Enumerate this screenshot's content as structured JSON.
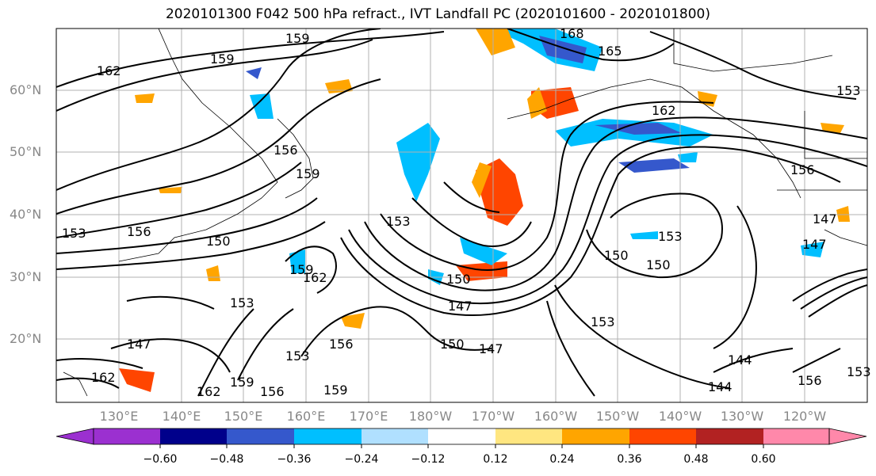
{
  "title": "2020101300 F042 500 hPa refract., IVT Landfall PC (2020101600 - 2020101800)",
  "lat_labels": [
    "60°N",
    "50°N",
    "40°N",
    "30°N",
    "20°N"
  ],
  "lon_labels": [
    "130°E",
    "140°E",
    "150°E",
    "160°E",
    "170°E",
    "180°W",
    "170°W",
    "160°W",
    "150°W",
    "140°W",
    "130°W",
    "120°W"
  ],
  "colorbar": {
    "colors": [
      "#9b30d0",
      "#00008b",
      "#3558cc",
      "#00bfff",
      "#b0e0ff",
      "#ffffff",
      "#ffe680",
      "#ffa500",
      "#ff4500",
      "#b22222",
      "#ff88aa"
    ],
    "tick_labels": [
      "−0.60",
      "−0.48",
      "−0.36",
      "−0.24",
      "−0.12",
      "0.12",
      "0.24",
      "0.36",
      "0.48",
      "0.60"
    ]
  },
  "contour_labels": [
    "159",
    "168",
    "165",
    "162",
    "159",
    "162",
    "156",
    "159",
    "153",
    "156",
    "150",
    "153",
    "162",
    "159",
    "153",
    "147",
    "150",
    "147",
    "153",
    "150",
    "156",
    "159",
    "162",
    "150",
    "147",
    "153",
    "156",
    "150",
    "153",
    "147",
    "144",
    "144",
    "156",
    "153",
    "162",
    "156",
    "159",
    "153",
    "147"
  ]
}
